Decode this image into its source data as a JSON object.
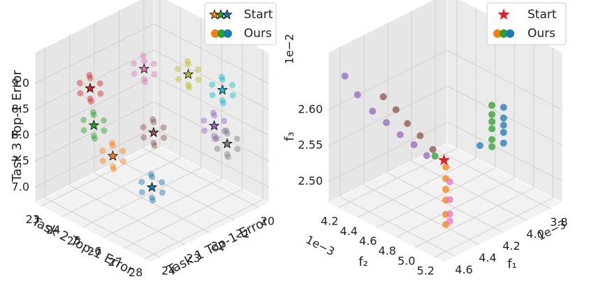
{
  "chart_data": [
    {
      "type": "scatter3d",
      "x_label": "Task 1 Top-1 Error",
      "y_label": "Task 2 Top-1 Error",
      "z_label": "Task 3 Top-1 Error",
      "xlim": [
        19.6,
        24.4
      ],
      "ylim": [
        22.7,
        28.3
      ],
      "zlim": [
        6.7,
        9.6
      ],
      "xticks": [
        20,
        21,
        22,
        23,
        24
      ],
      "yticks": [
        23,
        24,
        25,
        26,
        27,
        28
      ],
      "zticks": [
        {
          "value": 7,
          "label": "7.0"
        },
        7.5,
        {
          "value": 8,
          "label": "8.0"
        },
        8.5,
        {
          "value": 9,
          "label": "9.0"
        }
      ],
      "legend": [
        "Start",
        "Ours"
      ],
      "legend_position": "upper right",
      "grid": true,
      "series": [
        {
          "color": "#1f77b4",
          "start": [
            22.0,
            25.5,
            7.0
          ],
          "x": [
            21.6,
            22.4,
            22.0,
            22.0,
            22.0,
            22.0,
            21.7,
            22.3
          ],
          "y": [
            25.5,
            25.5,
            25.0,
            26.0,
            25.5,
            25.5,
            25.1,
            25.9
          ],
          "z": [
            7.0,
            7.0,
            7.0,
            7.0,
            6.8,
            7.2,
            7.1,
            6.9
          ]
        },
        {
          "color": "#ff7f0e",
          "start": [
            23.0,
            24.8,
            7.7
          ],
          "x": [
            22.6,
            23.4,
            23.0,
            23.0,
            23.0,
            23.0,
            22.7,
            23.3
          ],
          "y": [
            24.8,
            24.8,
            24.3,
            25.3,
            24.8,
            24.8,
            24.4,
            25.2
          ],
          "z": [
            7.7,
            7.7,
            7.7,
            7.7,
            7.5,
            7.9,
            7.8,
            7.6
          ]
        },
        {
          "color": "#2ca02c",
          "start": [
            23.1,
            24.0,
            8.15
          ],
          "x": [
            22.7,
            23.5,
            23.1,
            23.1,
            23.1,
            23.1,
            22.8,
            23.4
          ],
          "y": [
            24.0,
            24.0,
            23.5,
            24.5,
            24.0,
            24.0,
            23.6,
            24.4
          ],
          "z": [
            8.15,
            8.15,
            8.15,
            8.15,
            7.95,
            8.35,
            8.25,
            8.05
          ]
        },
        {
          "color": "#d62728",
          "start": [
            23.25,
            24.0,
            8.9
          ],
          "x": [
            22.85,
            23.65,
            23.25,
            23.25,
            23.25,
            23.25,
            22.95,
            23.55
          ],
          "y": [
            24.0,
            24.0,
            23.5,
            24.5,
            24.0,
            24.0,
            23.6,
            24.4
          ],
          "z": [
            8.9,
            8.9,
            8.9,
            8.9,
            8.7,
            9.1,
            9.0,
            8.8
          ]
        },
        {
          "color": "#8c564b",
          "start": [
            21.85,
            25.4,
            8.0
          ],
          "x": [
            21.45,
            22.25,
            21.85,
            21.85,
            21.85,
            21.85,
            21.55,
            22.15
          ],
          "y": [
            25.4,
            25.4,
            24.9,
            25.9,
            25.4,
            25.4,
            25.0,
            25.8
          ],
          "z": [
            8.0,
            8.0,
            8.0,
            8.0,
            7.8,
            8.2,
            8.1,
            7.9
          ]
        },
        {
          "color": "#e377c2",
          "start": [
            22.4,
            25.6,
            9.4
          ],
          "x": [
            22.0,
            22.8,
            22.4,
            22.4,
            22.4,
            22.4,
            22.1,
            22.7
          ],
          "y": [
            25.6,
            25.6,
            25.1,
            26.1,
            25.6,
            25.6,
            25.2,
            26.0
          ],
          "z": [
            9.4,
            9.4,
            9.4,
            9.4,
            9.2,
            9.55,
            9.5,
            9.3
          ]
        },
        {
          "color": "#bcbd22",
          "start": [
            21.2,
            26.3,
            9.15
          ],
          "x": [
            20.8,
            21.6,
            21.2,
            21.2,
            21.2,
            21.2,
            20.9,
            21.5
          ],
          "y": [
            26.3,
            26.3,
            25.8,
            26.8,
            26.3,
            26.3,
            25.9,
            26.7
          ],
          "z": [
            9.15,
            9.15,
            9.15,
            9.15,
            8.95,
            9.35,
            9.25,
            9.05
          ]
        },
        {
          "color": "#17becf",
          "start": [
            20.4,
            27.0,
            8.8
          ],
          "x": [
            20.0,
            20.8,
            20.4,
            20.4,
            20.4,
            20.4,
            20.1,
            20.7
          ],
          "y": [
            27.0,
            27.0,
            26.5,
            27.5,
            27.0,
            27.0,
            26.6,
            27.4
          ],
          "z": [
            8.8,
            8.8,
            8.8,
            8.8,
            8.6,
            9.0,
            8.9,
            8.7
          ]
        },
        {
          "color": "#9467bd",
          "start": [
            20.65,
            26.9,
            8.15
          ],
          "x": [
            20.25,
            21.05,
            20.65,
            20.65,
            20.65,
            20.65,
            20.35,
            20.95
          ],
          "y": [
            26.9,
            26.9,
            26.4,
            27.4,
            26.9,
            26.9,
            26.5,
            27.3
          ],
          "z": [
            8.15,
            8.15,
            8.15,
            8.15,
            7.95,
            8.35,
            8.25,
            8.05
          ]
        },
        {
          "color": "#7f7f7f",
          "start": [
            20.5,
            27.35,
            7.86
          ],
          "x": [
            20.1,
            20.9,
            20.5,
            20.5,
            20.5,
            20.5,
            20.2,
            20.8
          ],
          "y": [
            27.35,
            27.35,
            26.85,
            27.85,
            27.35,
            27.35,
            26.95,
            27.75
          ],
          "z": [
            7.86,
            7.86,
            7.86,
            7.86,
            7.66,
            8.06,
            7.96,
            7.76
          ]
        }
      ]
    },
    {
      "type": "scatter3d",
      "x_label": "f₁",
      "y_label": "f₂",
      "z_label": "f₃",
      "x_offset": "1e−3",
      "y_offset": "1e−3",
      "z_offset": "1e−2",
      "xlim": [
        3.7,
        4.7
      ],
      "ylim": [
        4.1,
        5.3
      ],
      "zlim": [
        2.47,
        2.68
      ],
      "xticks": [
        3.8,
        {
          "value": 4,
          "label": "4.0"
        },
        4.2,
        4.4,
        4.6
      ],
      "yticks": [
        4.2,
        4.4,
        4.6,
        4.8,
        {
          "value": 5,
          "label": "5.0"
        },
        5.2
      ],
      "zticks": [
        {
          "value": 2.5,
          "label": "2.50"
        },
        2.55,
        {
          "value": 2.6,
          "label": "2.60"
        }
      ],
      "legend": [
        "Start",
        "Ours"
      ],
      "legend_position": "upper right",
      "grid": true,
      "start": {
        "color": "#d62728",
        "point": [
          4.6,
          5.18,
          2.596
        ]
      },
      "series": [
        {
          "color": "#9467bd",
          "x": [
            4.6,
            4.6,
            4.6,
            4.6,
            4.6,
            4.6,
            4.6
          ],
          "y": [
            4.148,
            4.28,
            4.436,
            4.58,
            4.724,
            4.868,
            5.0
          ],
          "z": [
            2.642,
            2.625,
            2.613,
            2.607,
            2.6,
            2.596,
            2.59
          ]
        },
        {
          "color": "#8c564b",
          "x": [
            4.5,
            4.5,
            4.5,
            4.5,
            4.5
          ],
          "y": [
            4.424,
            4.556,
            4.676,
            4.808,
            4.94
          ],
          "z": [
            2.624,
            2.615,
            2.604,
            2.596,
            2.586
          ]
        },
        {
          "color": "#ff7f0e",
          "x": [
            4.65,
            4.65,
            4.65,
            4.65,
            4.65,
            4.65
          ],
          "y": [
            5.26,
            5.26,
            5.26,
            5.26,
            5.26,
            5.26
          ],
          "z": [
            2.596,
            2.58,
            2.565,
            2.55,
            2.53,
            2.516
          ]
        },
        {
          "color": "#e377c2",
          "x": [
            4.6,
            4.6,
            4.6,
            4.6
          ],
          "y": [
            5.24,
            5.24,
            5.24,
            5.24
          ],
          "z": [
            2.57,
            2.545,
            2.525,
            2.515
          ]
        },
        {
          "color": "#2ca02c",
          "x": [
            4.1,
            4.1,
            4.1,
            4.1,
            4.1,
            4.1,
            4.45
          ],
          "y": [
            5.06,
            5.06,
            5.06,
            5.06,
            5.06,
            5.06,
            4.9
          ],
          "z": [
            2.623,
            2.61,
            2.6,
            2.59,
            2.575,
            2.565,
            2.57
          ]
        },
        {
          "color": "#1f77b4",
          "x": [
            4.05,
            4.05,
            4.05,
            4.05,
            4.05,
            4.2
          ],
          "y": [
            5.12,
            5.12,
            5.12,
            5.12,
            5.12,
            5.06
          ],
          "z": [
            2.62,
            2.605,
            2.595,
            2.585,
            2.57,
            2.575
          ]
        }
      ]
    }
  ]
}
